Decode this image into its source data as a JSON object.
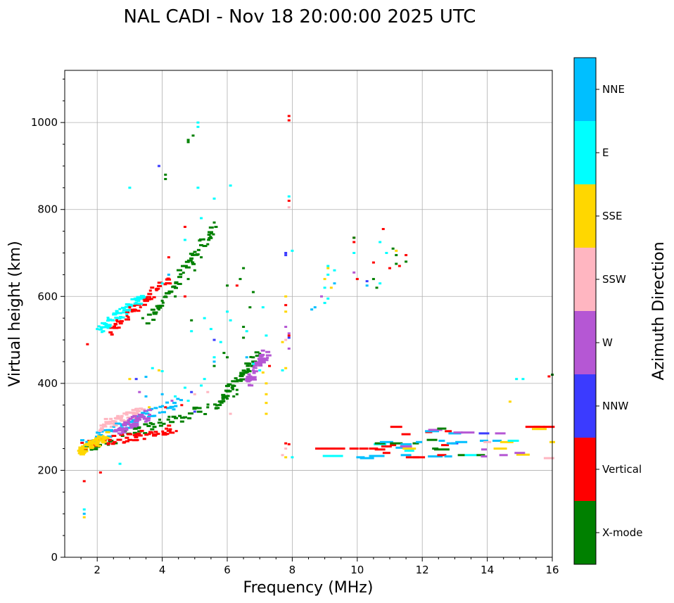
{
  "chart_data": {
    "type": "scatter",
    "title": "NAL CADI - Nov 18 20:00:00 2025 UTC",
    "xlabel": "Frequency (MHz)",
    "ylabel": "Virtual height (km)",
    "xlim": [
      1.0,
      16.0
    ],
    "ylim": [
      0,
      1120
    ],
    "xticks": [
      2,
      4,
      6,
      8,
      10,
      12,
      14,
      16
    ],
    "yticks": [
      0,
      200,
      400,
      600,
      800,
      1000
    ],
    "grid": true,
    "colorbar": {
      "title": "Azimuth Direction",
      "categories": [
        {
          "name": "X-mode",
          "color": "#008000"
        },
        {
          "name": "Vertical",
          "color": "#ff0000"
        },
        {
          "name": "NNW",
          "color": "#3b3bff"
        },
        {
          "name": "W",
          "color": "#b557d4"
        },
        {
          "name": "SSW",
          "color": "#ffb6c1"
        },
        {
          "name": "SSE",
          "color": "#ffd700"
        },
        {
          "name": "E",
          "color": "#00ffff"
        },
        {
          "name": "NNE",
          "color": "#00bfff"
        }
      ]
    },
    "traces": [
      {
        "category": "X-mode",
        "from": [
          1.6,
          250
        ],
        "to": [
          5.7,
          350
        ]
      },
      {
        "category": "X-mode",
        "from": [
          5.7,
          350
        ],
        "to": [
          7.0,
          470
        ]
      },
      {
        "category": "X-mode",
        "from": [
          3.6,
          545
        ],
        "to": [
          5.6,
          760
        ]
      },
      {
        "category": "Vertical",
        "from": [
          1.6,
          258
        ],
        "to": [
          4.4,
          295
        ]
      },
      {
        "category": "Vertical",
        "from": [
          2.4,
          520
        ],
        "to": [
          4.2,
          640
        ]
      },
      {
        "category": "NNE",
        "from": [
          1.6,
          265
        ],
        "to": [
          4.6,
          360
        ]
      },
      {
        "category": "E",
        "from": [
          2.0,
          520
        ],
        "to": [
          3.4,
          600
        ]
      },
      {
        "category": "SSW",
        "from": [
          2.0,
          300
        ],
        "to": [
          3.4,
          335
        ]
      },
      {
        "category": "W",
        "from": [
          2.6,
          290
        ],
        "to": [
          3.6,
          330
        ]
      },
      {
        "category": "SSE",
        "from": [
          1.5,
          240
        ],
        "to": [
          2.3,
          280
        ]
      },
      {
        "category": "W",
        "from": [
          6.6,
          400
        ],
        "to": [
          7.2,
          470
        ]
      }
    ],
    "points": [
      [
        "NNE",
        1.6,
        100
      ],
      [
        "E",
        1.6,
        110
      ],
      [
        "SSE",
        1.6,
        92
      ],
      [
        "Vertical",
        1.6,
        175
      ],
      [
        "Vertical",
        2.1,
        195
      ],
      [
        "E",
        2.7,
        215
      ],
      [
        "Vertical",
        1.7,
        490
      ],
      [
        "E",
        2.0,
        525
      ],
      [
        "E",
        2.2,
        520
      ],
      [
        "Vertical",
        2.6,
        545
      ],
      [
        "Vertical",
        3.0,
        575
      ],
      [
        "E",
        3.2,
        585
      ],
      [
        "X-mode",
        3.4,
        550
      ],
      [
        "X-mode",
        3.9,
        570
      ],
      [
        "X-mode",
        4.0,
        590
      ],
      [
        "X-mode",
        4.1,
        600
      ],
      [
        "E",
        4.0,
        630
      ],
      [
        "Vertical",
        4.2,
        690
      ],
      [
        "NNE",
        4.2,
        650
      ],
      [
        "X-mode",
        4.4,
        600
      ],
      [
        "Vertical",
        4.7,
        600
      ],
      [
        "X-mode",
        4.8,
        640
      ],
      [
        "X-mode",
        5.0,
        660
      ],
      [
        "X-mode",
        5.2,
        690
      ],
      [
        "X-mode",
        5.4,
        720
      ],
      [
        "X-mode",
        5.5,
        745
      ],
      [
        "X-mode",
        5.6,
        770
      ],
      [
        "Vertical",
        4.7,
        760
      ],
      [
        "E",
        4.7,
        730
      ],
      [
        "E",
        5.2,
        780
      ],
      [
        "E",
        5.6,
        825
      ],
      [
        "E",
        6.1,
        855
      ],
      [
        "X-mode",
        4.1,
        880
      ],
      [
        "X-mode",
        4.1,
        870
      ],
      [
        "NNW",
        3.9,
        900
      ],
      [
        "E",
        3.0,
        850
      ],
      [
        "E",
        5.1,
        850
      ],
      [
        "X-mode",
        4.8,
        960
      ],
      [
        "X-mode",
        4.8,
        955
      ],
      [
        "X-mode",
        4.95,
        970
      ],
      [
        "E",
        5.1,
        990
      ],
      [
        "E",
        5.1,
        1000
      ],
      [
        "Vertical",
        7.9,
        1015
      ],
      [
        "Vertical",
        7.9,
        1005
      ],
      [
        "E",
        7.9,
        830
      ],
      [
        "Vertical",
        7.9,
        820
      ],
      [
        "SSW",
        7.9,
        805
      ],
      [
        "NNW",
        7.8,
        700
      ],
      [
        "E",
        8.0,
        705
      ],
      [
        "NNW",
        7.8,
        695
      ],
      [
        "X-mode",
        6.5,
        665
      ],
      [
        "X-mode",
        6.4,
        640
      ],
      [
        "Vertical",
        6.3,
        625
      ],
      [
        "X-mode",
        6.0,
        625
      ],
      [
        "X-mode",
        6.8,
        610
      ],
      [
        "SSE",
        7.8,
        600
      ],
      [
        "Vertical",
        7.8,
        580
      ],
      [
        "E",
        7.1,
        575
      ],
      [
        "X-mode",
        6.7,
        575
      ],
      [
        "SSE",
        7.8,
        565
      ],
      [
        "E",
        6.0,
        565
      ],
      [
        "E",
        5.3,
        550
      ],
      [
        "X-mode",
        4.9,
        545
      ],
      [
        "E",
        4.9,
        520
      ],
      [
        "E",
        5.5,
        525
      ],
      [
        "E",
        6.1,
        545
      ],
      [
        "X-mode",
        6.5,
        530
      ],
      [
        "E",
        6.6,
        520
      ],
      [
        "X-mode",
        6.5,
        505
      ],
      [
        "E",
        7.2,
        510
      ],
      [
        "W",
        7.8,
        530
      ],
      [
        "W",
        7.9,
        515
      ],
      [
        "SSE",
        7.7,
        495
      ],
      [
        "NNW",
        7.9,
        505
      ],
      [
        "SSW",
        7.8,
        500
      ],
      [
        "W",
        7.9,
        480
      ],
      [
        "E",
        7.7,
        430
      ],
      [
        "SSE",
        7.8,
        435
      ],
      [
        "Vertical",
        7.9,
        510
      ],
      [
        "NNW",
        5.6,
        500
      ],
      [
        "E",
        5.8,
        495
      ],
      [
        "X-mode",
        5.9,
        470
      ],
      [
        "X-mode",
        6.0,
        460
      ],
      [
        "NNE",
        6.6,
        460
      ],
      [
        "E",
        6.8,
        445
      ],
      [
        "E",
        7.0,
        430
      ],
      [
        "SSE",
        7.1,
        425
      ],
      [
        "W",
        6.8,
        430
      ],
      [
        "SSE",
        7.2,
        400
      ],
      [
        "SSE",
        7.2,
        375
      ],
      [
        "SSE",
        7.2,
        355
      ],
      [
        "SSE",
        7.2,
        330
      ],
      [
        "Vertical",
        7.3,
        440
      ],
      [
        "X-mode",
        6.3,
        385
      ],
      [
        "X-mode",
        6.3,
        375
      ],
      [
        "X-mode",
        6.2,
        370
      ],
      [
        "X-mode",
        6.0,
        365
      ],
      [
        "SSW",
        5.4,
        380
      ],
      [
        "SSW",
        6.1,
        330
      ],
      [
        "NNE",
        5.6,
        450
      ],
      [
        "E",
        5.6,
        460
      ],
      [
        "X-mode",
        5.6,
        440
      ],
      [
        "NNW",
        3.2,
        410
      ],
      [
        "NNE",
        3.5,
        415
      ],
      [
        "SSE",
        3.0,
        410
      ],
      [
        "E",
        3.7,
        435
      ],
      [
        "SSE",
        3.9,
        430
      ],
      [
        "E",
        4.0,
        428
      ],
      [
        "W",
        3.3,
        380
      ],
      [
        "NNE",
        3.5,
        370
      ],
      [
        "NNE",
        4.0,
        375
      ],
      [
        "E",
        4.4,
        370
      ],
      [
        "Vertical",
        4.1,
        345
      ],
      [
        "SSE",
        3.6,
        345
      ],
      [
        "W",
        4.3,
        360
      ],
      [
        "Vertical",
        4.6,
        350
      ],
      [
        "NNW",
        4.9,
        380
      ],
      [
        "E",
        4.7,
        390
      ],
      [
        "SSW",
        5.0,
        375
      ],
      [
        "E",
        5.2,
        395
      ],
      [
        "E",
        5.3,
        410
      ],
      [
        "E",
        4.8,
        360
      ],
      [
        "NNW",
        5.0,
        335
      ],
      [
        "X-mode",
        5.4,
        345
      ],
      [
        "SSW",
        9.0,
        585
      ],
      [
        "NNE",
        8.7,
        575
      ],
      [
        "NNE",
        8.6,
        570
      ],
      [
        "W",
        8.9,
        600
      ],
      [
        "E",
        9.1,
        595
      ],
      [
        "E",
        9.0,
        585
      ],
      [
        "SSE",
        9.2,
        620
      ],
      [
        "NNE",
        9.3,
        630
      ],
      [
        "E",
        9.1,
        650
      ],
      [
        "E",
        9.3,
        660
      ],
      [
        "SSE",
        9.1,
        665
      ],
      [
        "E",
        9.1,
        670
      ],
      [
        "SSE",
        9.0,
        640
      ],
      [
        "E",
        9.0,
        620
      ],
      [
        "Vertical",
        9.9,
        735
      ],
      [
        "X-mode",
        9.9,
        735
      ],
      [
        "E",
        9.9,
        700
      ],
      [
        "Vertical",
        9.9,
        725
      ],
      [
        "Vertical",
        10.0,
        640
      ],
      [
        "NNW",
        10.3,
        635
      ],
      [
        "NNE",
        10.3,
        625
      ],
      [
        "W",
        9.9,
        655
      ],
      [
        "X-mode",
        10.5,
        640
      ],
      [
        "Vertical",
        10.5,
        678
      ],
      [
        "Vertical",
        10.8,
        755
      ],
      [
        "E",
        10.7,
        725
      ],
      [
        "E",
        10.9,
        700
      ],
      [
        "Vertical",
        11.0,
        665
      ],
      [
        "X-mode",
        11.2,
        695
      ],
      [
        "SSE",
        11.2,
        705
      ],
      [
        "X-mode",
        11.1,
        710
      ],
      [
        "Vertical",
        11.5,
        695
      ],
      [
        "X-mode",
        11.5,
        680
      ],
      [
        "Vertical",
        11.3,
        670
      ],
      [
        "X-mode",
        11.2,
        675
      ],
      [
        "E",
        10.7,
        630
      ],
      [
        "X-mode",
        10.6,
        620
      ],
      [
        "Vertical",
        8.9,
        250
      ],
      [
        "Vertical",
        9.1,
        250
      ],
      [
        "Vertical",
        9.4,
        250
      ],
      [
        "Vertical",
        9.9,
        250
      ],
      [
        "Vertical",
        10.2,
        250
      ],
      [
        "E",
        9.1,
        233
      ],
      [
        "E",
        9.4,
        233
      ],
      [
        "NNE",
        10.1,
        230
      ],
      [
        "NNE",
        10.3,
        228
      ],
      [
        "Vertical",
        10.5,
        250
      ],
      [
        "Vertical",
        10.7,
        248
      ],
      [
        "Vertical",
        10.9,
        240
      ],
      [
        "NNE",
        10.6,
        233
      ],
      [
        "Vertical",
        10.9,
        255
      ],
      [
        "E",
        10.7,
        260
      ],
      [
        "X-mode",
        10.7,
        262
      ],
      [
        "NNE",
        10.9,
        265
      ],
      [
        "Vertical",
        11.1,
        258
      ],
      [
        "X-mode",
        11.2,
        262
      ],
      [
        "NNE",
        11.3,
        252
      ],
      [
        "Vertical",
        11.2,
        300
      ],
      [
        "W",
        11.5,
        255
      ],
      [
        "NNE",
        11.5,
        235
      ],
      [
        "Vertical",
        11.7,
        230
      ],
      [
        "Vertical",
        11.9,
        230
      ],
      [
        "Vertical",
        11.5,
        283
      ],
      [
        "X-mode",
        11.8,
        262
      ],
      [
        "E",
        11.6,
        245
      ],
      [
        "SSE",
        11.6,
        250
      ],
      [
        "NNE",
        11.5,
        260
      ],
      [
        "NNE",
        11.9,
        265
      ],
      [
        "Vertical",
        12.2,
        288
      ],
      [
        "NNE",
        12.3,
        290
      ],
      [
        "W",
        12.4,
        293
      ],
      [
        "X-mode",
        12.6,
        296
      ],
      [
        "Vertical",
        12.8,
        290
      ],
      [
        "NNE",
        13.0,
        285
      ],
      [
        "X-mode",
        12.3,
        270
      ],
      [
        "NNE",
        12.6,
        268
      ],
      [
        "Vertical",
        12.7,
        258
      ],
      [
        "NNW",
        13.0,
        262
      ],
      [
        "NNE",
        13.2,
        265
      ],
      [
        "X-mode",
        12.4,
        250
      ],
      [
        "X-mode",
        12.6,
        248
      ],
      [
        "NNE",
        12.9,
        262
      ],
      [
        "NNE",
        12.4,
        232
      ],
      [
        "Vertical",
        12.6,
        235
      ],
      [
        "NNE",
        12.8,
        232
      ],
      [
        "X-mode",
        13.2,
        235
      ],
      [
        "E",
        13.5,
        235
      ],
      [
        "X-mode",
        13.8,
        235
      ],
      [
        "W",
        13.1,
        287
      ],
      [
        "W",
        13.4,
        287
      ],
      [
        "NNW",
        13.9,
        285
      ],
      [
        "W",
        14.4,
        285
      ],
      [
        "NNE",
        13.9,
        268
      ],
      [
        "SSW",
        14.0,
        265
      ],
      [
        "NNE",
        14.3,
        268
      ],
      [
        "SSE",
        14.6,
        265
      ],
      [
        "E",
        14.8,
        268
      ],
      [
        "W",
        13.9,
        248
      ],
      [
        "SSE",
        14.4,
        250
      ],
      [
        "W",
        13.9,
        232
      ],
      [
        "W",
        14.5,
        235
      ],
      [
        "SSE",
        15.1,
        236
      ],
      [
        "W",
        15.0,
        240
      ],
      [
        "Vertical",
        15.4,
        300
      ],
      [
        "Vertical",
        15.6,
        300
      ],
      [
        "SSE",
        15.6,
        295
      ],
      [
        "Vertical",
        15.9,
        300
      ],
      [
        "SSE",
        16.0,
        265
      ],
      [
        "SSW",
        15.9,
        228
      ],
      [
        "Vertical",
        15.9,
        416
      ],
      [
        "X-mode",
        16.0,
        420
      ],
      [
        "E",
        14.9,
        410
      ],
      [
        "E",
        15.1,
        410
      ],
      [
        "SSE",
        14.7,
        358
      ],
      [
        "SSE",
        7.8,
        230
      ],
      [
        "SSW",
        7.8,
        250
      ],
      [
        "Vertical",
        7.9,
        260
      ],
      [
        "E",
        8.0,
        230
      ],
      [
        "SSW",
        7.7,
        235
      ],
      [
        "Vertical",
        7.8,
        262
      ]
    ]
  }
}
